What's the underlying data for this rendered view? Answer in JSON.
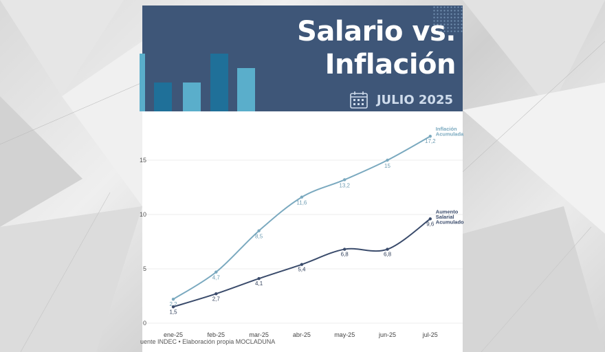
{
  "header": {
    "title_line1": "Salario vs.",
    "title_line2": "Inflación",
    "date_label": "JULIO 2025",
    "calendar_icon": "calendar-icon"
  },
  "colors": {
    "banner": "#3e5678",
    "inflation_line": "#7aa9bf",
    "salary_line": "#3a4b6b",
    "deco_bar_dark": "#1f7099",
    "deco_bar_light": "#5aaecb"
  },
  "chart_data": {
    "type": "line",
    "title": "Salario vs. Inflación",
    "subtitle": "JULIO 2025",
    "categories": [
      "ene-25",
      "feb-25",
      "mar-25",
      "abr-25",
      "may-25",
      "jun-25",
      "jul-25"
    ],
    "y_ticks": [
      "0",
      "5",
      "10",
      "15"
    ],
    "ylim": [
      0,
      18
    ],
    "grid": true,
    "series": [
      {
        "name": "Inflación Acumulada",
        "name_lines": [
          "Inflación",
          "Acumulada"
        ],
        "values": [
          2.2,
          4.7,
          8.5,
          11.6,
          13.2,
          15,
          17.2
        ],
        "labels": [
          "2,2",
          "4,7",
          "8,5",
          "11,6",
          "13,2",
          "15",
          "17,2"
        ]
      },
      {
        "name": "Aumento Salarial Acumulado",
        "name_lines": [
          "Aumento",
          "Salarial",
          "Acumulado"
        ],
        "values": [
          1.5,
          2.7,
          4.1,
          5.4,
          6.8,
          6.8,
          9.6
        ],
        "labels": [
          "1,5",
          "2,7",
          "4,1",
          "5,4",
          "6,8",
          "6,8",
          "9,6"
        ]
      }
    ]
  },
  "footer": {
    "source": "uente INDEC • Elaboración propia MOCLADUNA"
  }
}
